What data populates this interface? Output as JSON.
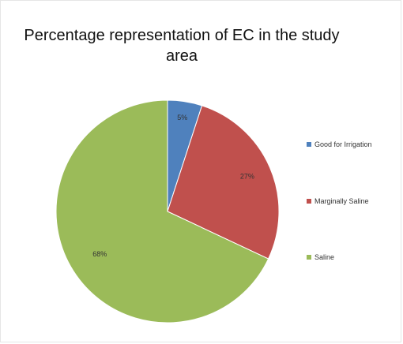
{
  "chart_data": {
    "type": "pie",
    "title_lines": [
      "Percentage representation of EC in the study",
      "area"
    ],
    "categories": [
      "Good for Irrigation",
      "Marginally Saline",
      "Saline"
    ],
    "values": [
      5,
      27,
      68
    ],
    "data_labels": [
      "5%",
      "27%",
      "68%"
    ],
    "colors": [
      "#4f81bd",
      "#c0504d",
      "#9bbb59"
    ],
    "legend_position": "right"
  }
}
